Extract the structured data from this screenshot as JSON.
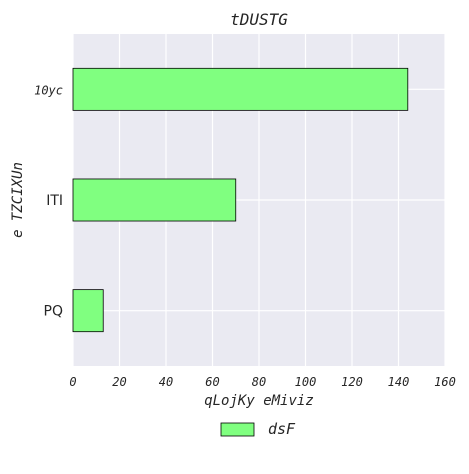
{
  "chart_data": {
    "type": "bar",
    "orientation": "horizontal",
    "title": "tDUSTG",
    "xlabel": "qLojKy  eMiviz",
    "ylabel": "e TZCIXUn",
    "categories": [
      "10yc",
      "ITI",
      "PQ"
    ],
    "category_styles": [
      "italic",
      "normal",
      "normal"
    ],
    "series": [
      {
        "name": "dsF",
        "values": [
          144,
          70,
          13
        ]
      }
    ],
    "xlim": [
      0,
      160
    ],
    "xticks": [
      0,
      20,
      40,
      60,
      80,
      100,
      120,
      140,
      160
    ],
    "grid": true,
    "legend_position": "bottom-center"
  },
  "colors": {
    "bar_fill": "#80ff80",
    "bar_edge": "#000000",
    "plot_background": "#eaeaf2",
    "grid": "#ffffff",
    "text": "#262626"
  }
}
